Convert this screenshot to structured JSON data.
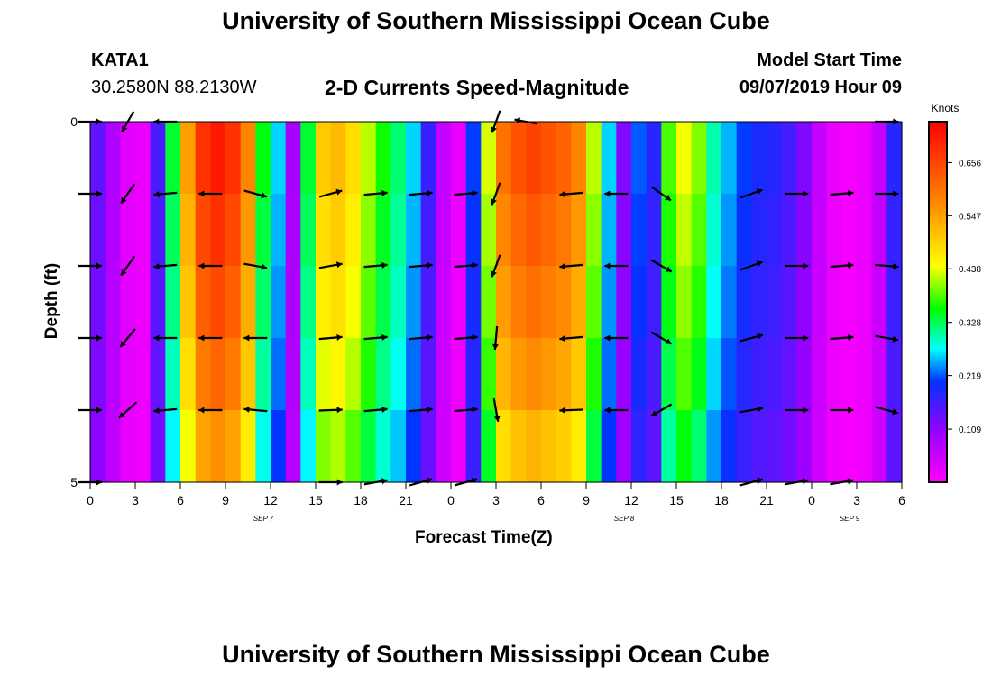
{
  "header": {
    "title": "University of Southern Mississippi Ocean Cube",
    "station": "KATA1",
    "location": "30.2580N 88.2130W",
    "subtitle": "2-D Currents Speed-Magnitude",
    "model_label": "Model Start Time",
    "model_time": "09/07/2019 Hour 09",
    "footer_title": "University of Southern Mississippi Ocean Cube"
  },
  "chart_data": {
    "type": "heatmap",
    "title": "2-D Currents Speed-Magnitude",
    "xlabel": "Forecast Time(Z)",
    "ylabel": "Depth (ft)",
    "colorbar_label": "Knots",
    "xlim": [
      0,
      54
    ],
    "ylim": [
      0,
      5
    ],
    "y_ticks": [
      0,
      1,
      2,
      3,
      4,
      5
    ],
    "y_tick_labels": [
      "0",
      "",
      "",
      "",
      "",
      "5"
    ],
    "x_ticks": [
      0,
      3,
      6,
      9,
      12,
      15,
      18,
      21,
      24,
      27,
      30,
      33,
      36,
      39,
      42,
      45,
      48,
      51,
      54
    ],
    "x_tick_labels": [
      "0",
      "3",
      "6",
      "9",
      "12",
      "15",
      "18",
      "21",
      "0",
      "3",
      "6",
      "9",
      "12",
      "15",
      "18",
      "21",
      "0",
      "3",
      "6"
    ],
    "date_labels": [
      {
        "x": 12,
        "text": "SEP 7"
      },
      {
        "x": 36,
        "text": "SEP 8"
      },
      {
        "x": 51,
        "text": "SEP 9"
      }
    ],
    "colorbar": {
      "min": 0.0,
      "max": 0.74,
      "ticks": [
        0.109,
        0.219,
        0.328,
        0.438,
        0.547,
        0.656
      ],
      "tick_labels": [
        "0.109",
        "0.219",
        "0.328",
        "0.438",
        "0.547",
        "0.656"
      ]
    },
    "speed_by_hour": [
      0.14,
      0.08,
      0.03,
      0.02,
      0.16,
      0.34,
      0.55,
      0.68,
      0.71,
      0.68,
      0.58,
      0.35,
      0.26,
      0.09,
      0.34,
      0.5,
      0.52,
      0.48,
      0.42,
      0.36,
      0.32,
      0.26,
      0.17,
      0.06,
      0.02,
      0.21,
      0.43,
      0.6,
      0.64,
      0.66,
      0.64,
      0.62,
      0.58,
      0.42,
      0.26,
      0.12,
      0.22,
      0.18,
      0.38,
      0.44,
      0.4,
      0.3,
      0.25,
      0.21,
      0.19,
      0.18,
      0.16,
      0.12,
      0.06,
      0.02,
      0.01,
      0.02,
      0.06,
      0.18
    ],
    "depth_factor": [
      1.0,
      0.96,
      0.92,
      0.87,
      0.8
    ],
    "vector_depths": [
      0,
      1,
      2,
      3,
      4,
      5
    ],
    "vectors": [
      {
        "t": 0,
        "depth_dirs": [
          90,
          90,
          90,
          90,
          90,
          90
        ]
      },
      {
        "t": 2.5,
        "depth_dirs": [
          210,
          215,
          215,
          220,
          228,
          null
        ]
      },
      {
        "t": 5,
        "depth_dirs": [
          270,
          265,
          265,
          270,
          265,
          null
        ]
      },
      {
        "t": 8,
        "depth_dirs": [
          null,
          270,
          270,
          270,
          270,
          null
        ]
      },
      {
        "t": 11,
        "depth_dirs": [
          null,
          105,
          100,
          270,
          275,
          null
        ]
      },
      {
        "t": 16,
        "depth_dirs": [
          null,
          75,
          80,
          85,
          88,
          90
        ]
      },
      {
        "t": 19,
        "depth_dirs": [
          null,
          85,
          85,
          85,
          85,
          80
        ]
      },
      {
        "t": 22,
        "depth_dirs": [
          null,
          85,
          85,
          85,
          85,
          75
        ]
      },
      {
        "t": 25,
        "depth_dirs": [
          null,
          85,
          85,
          85,
          85,
          75
        ]
      },
      {
        "t": 27,
        "depth_dirs": [
          200,
          200,
          200,
          185,
          170,
          null
        ]
      },
      {
        "t": 29,
        "depth_dirs": [
          280,
          null,
          null,
          null,
          null,
          null
        ]
      },
      {
        "t": 32,
        "depth_dirs": [
          null,
          265,
          265,
          265,
          268,
          null
        ]
      },
      {
        "t": 35,
        "depth_dirs": [
          null,
          270,
          270,
          270,
          270,
          null
        ]
      },
      {
        "t": 38,
        "depth_dirs": [
          null,
          125,
          120,
          120,
          240,
          null
        ]
      },
      {
        "t": 44,
        "depth_dirs": [
          null,
          70,
          70,
          75,
          80,
          75
        ]
      },
      {
        "t": 47,
        "depth_dirs": [
          null,
          90,
          90,
          90,
          90,
          80
        ]
      },
      {
        "t": 50,
        "depth_dirs": [
          null,
          85,
          85,
          85,
          90,
          80
        ]
      },
      {
        "t": 53,
        "depth_dirs": [
          90,
          90,
          95,
          100,
          105,
          null
        ]
      }
    ]
  }
}
